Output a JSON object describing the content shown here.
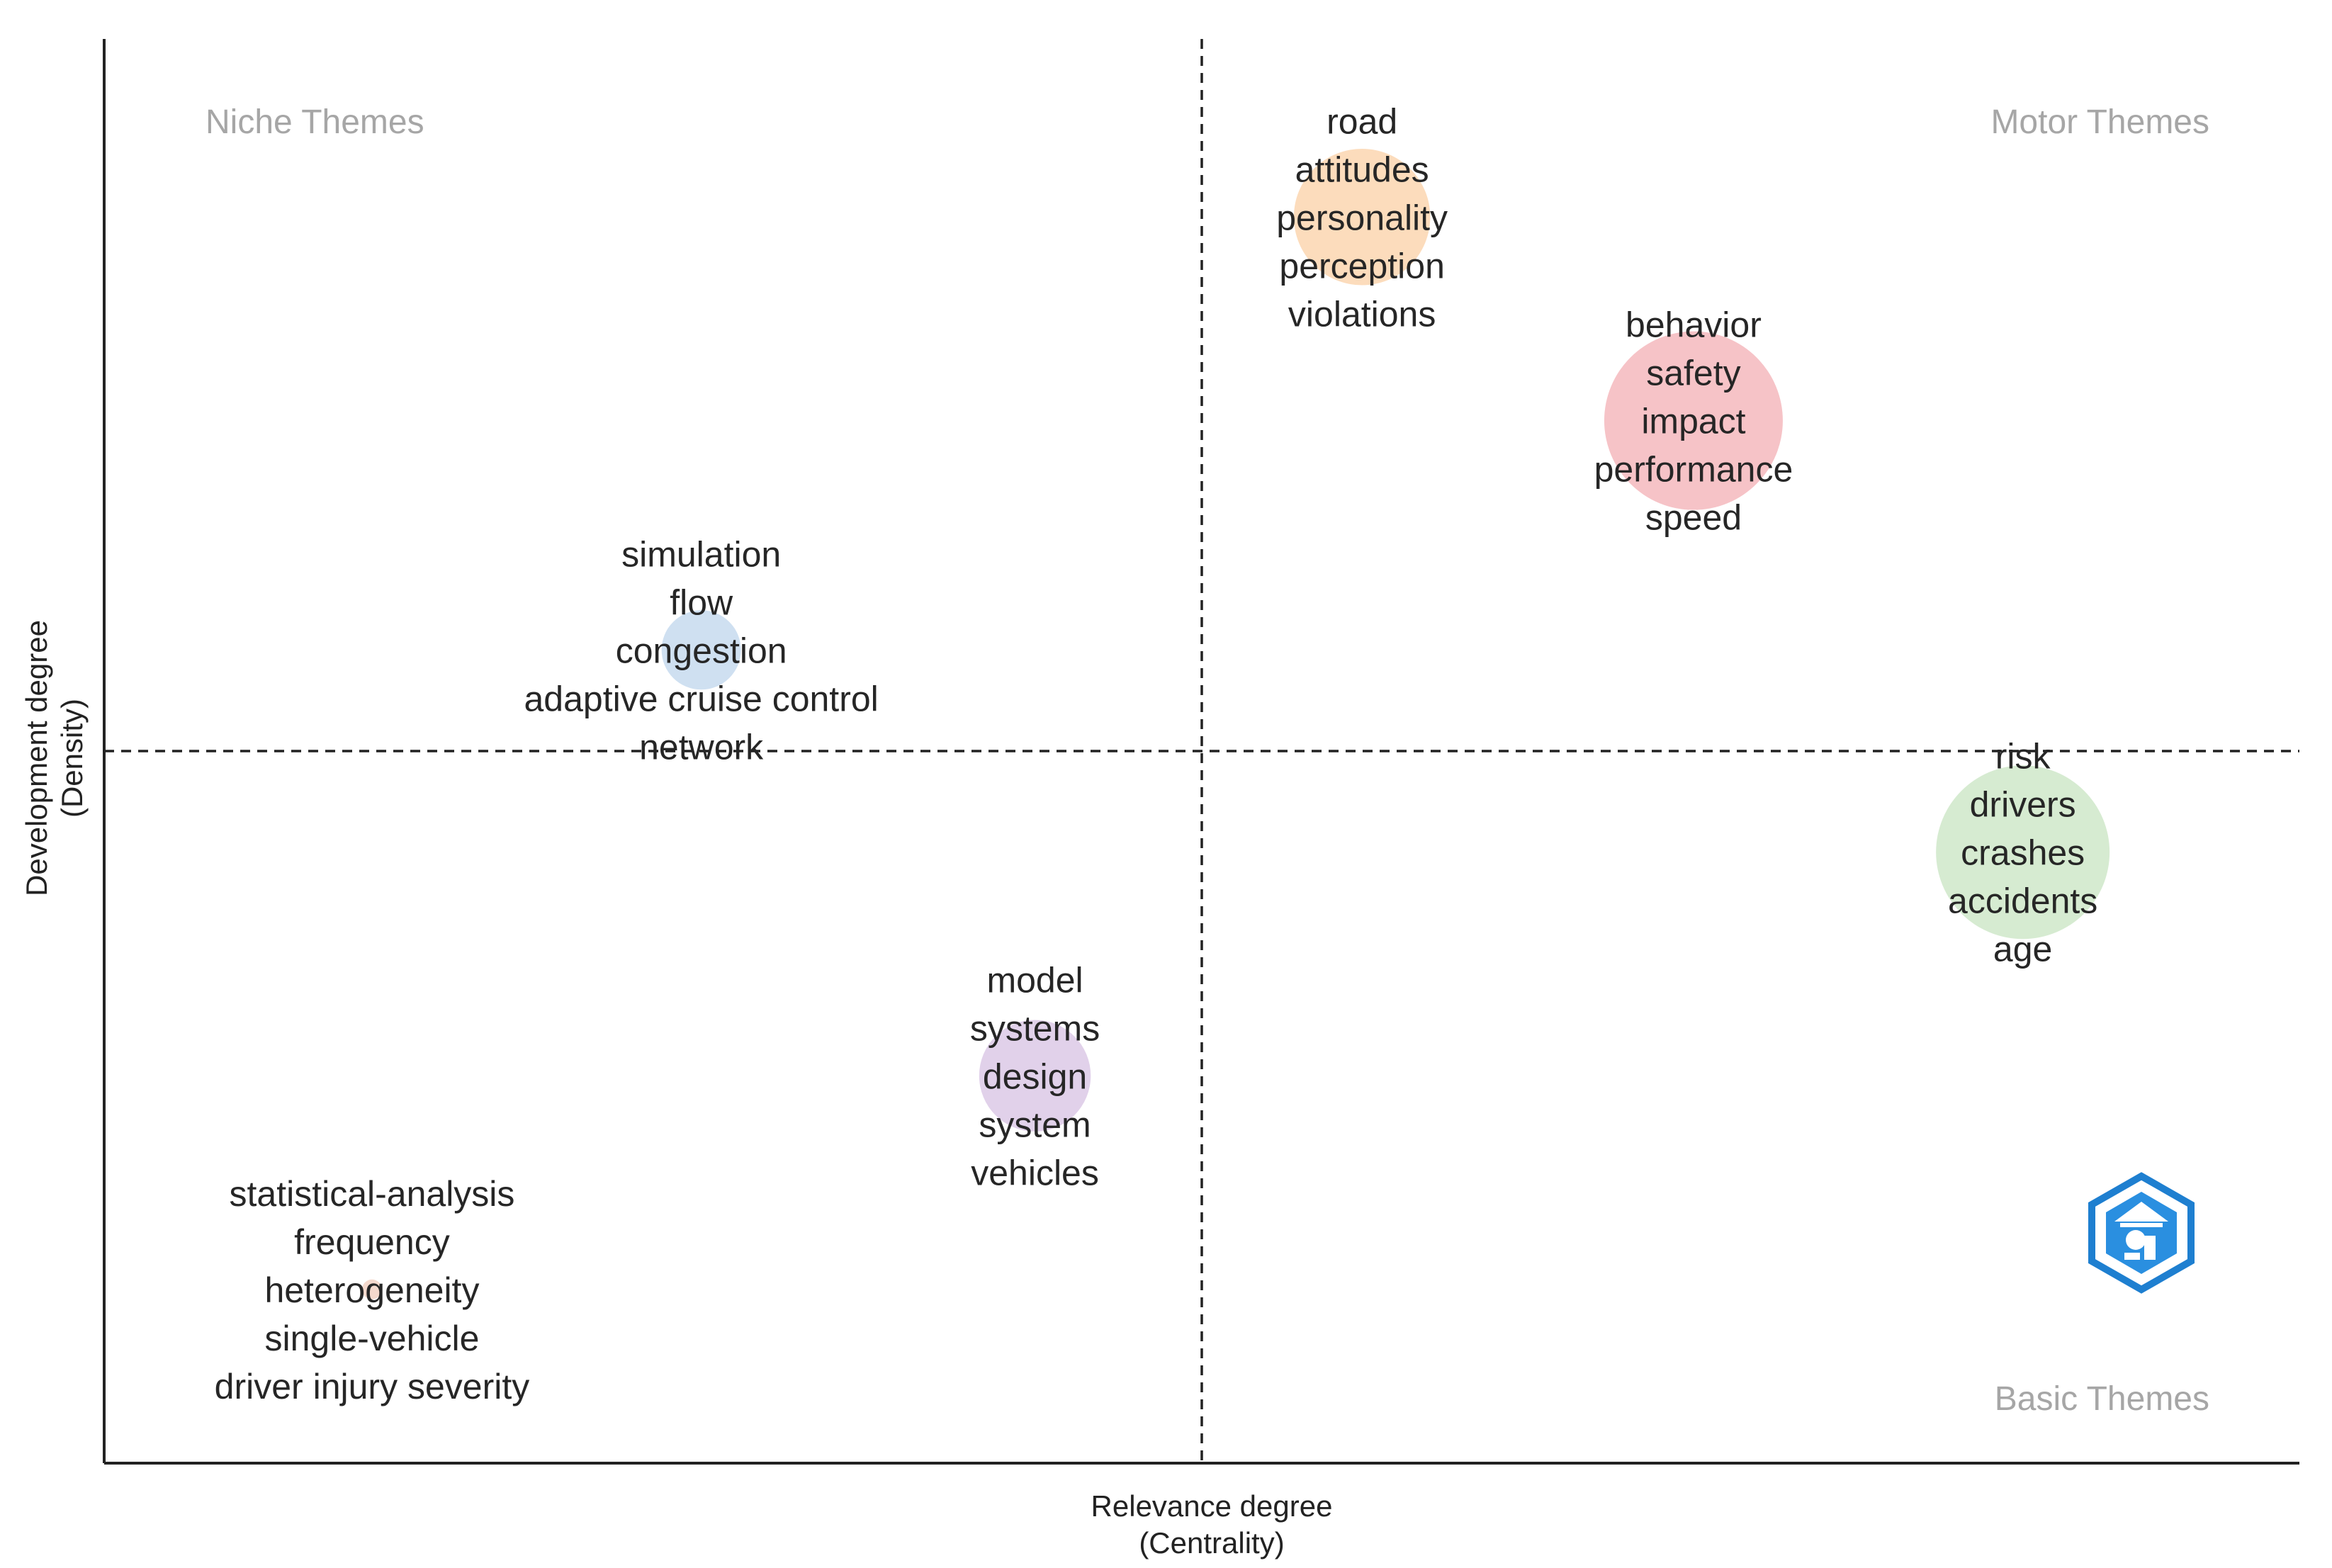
{
  "chart_data": {
    "type": "scatter",
    "title": "",
    "xlabel": [
      "Relevance degree",
      "(Centrality)"
    ],
    "ylabel": [
      "Development degree",
      "(Density)"
    ],
    "xlim": [
      0,
      100
    ],
    "ylim": [
      0,
      100
    ],
    "x_divider": 50,
    "y_divider": 50,
    "quadrant_labels": {
      "top_left": "Niche Themes",
      "top_right": "Motor Themes",
      "bottom_right": "Basic Themes"
    },
    "clusters": [
      {
        "name": "road",
        "x": 57.3,
        "y": 87.5,
        "size": 0.55,
        "color": "#fbd6b0",
        "terms": [
          "road",
          "attitudes",
          "personality",
          "perception",
          "violations"
        ]
      },
      {
        "name": "behavior",
        "x": 72.4,
        "y": 73.2,
        "size": 0.72,
        "color": "#f4b9bd",
        "terms": [
          "behavior",
          "safety",
          "impact",
          "performance",
          "speed"
        ]
      },
      {
        "name": "simulation",
        "x": 27.2,
        "y": 57.1,
        "size": 0.32,
        "color": "#c7dbef",
        "terms": [
          "simulation",
          "flow",
          "congestion",
          "adaptive cruise control",
          "network"
        ]
      },
      {
        "name": "risk",
        "x": 87.4,
        "y": 42.9,
        "size": 0.7,
        "color": "#cfe8c9",
        "terms": [
          "risk",
          "drivers",
          "crashes",
          "accidents",
          "age"
        ]
      },
      {
        "name": "model",
        "x": 42.4,
        "y": 27.2,
        "size": 0.45,
        "color": "#dcc9e6",
        "terms": [
          "model",
          "systems",
          "design",
          "system",
          "vehicles"
        ]
      },
      {
        "name": "statistical-analysis",
        "x": 12.2,
        "y": 12.2,
        "size": 0.08,
        "color": "#f2d2c4",
        "terms": [
          "statistical-analysis",
          "frequency",
          "heterogeneity",
          "single-vehicle",
          "driver injury severity"
        ]
      }
    ],
    "watermark_icon": "biblioshiny-logo-icon"
  }
}
